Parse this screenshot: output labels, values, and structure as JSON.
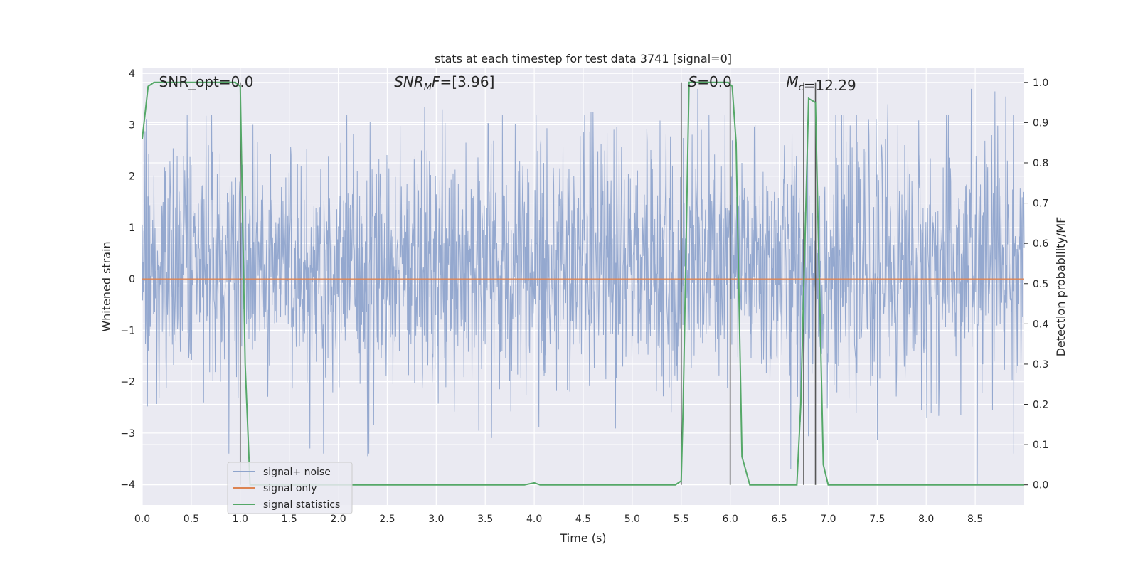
{
  "chart_data": {
    "type": "line",
    "title": "stats at each timestep for test data 3741 [signal=0]",
    "xlabel": "Time (s)",
    "ylabel_left": "Whitened strain",
    "ylabel_right": "Detection probability/MF",
    "xlim": [
      0,
      9
    ],
    "ylim_left": [
      -4.4,
      4.1
    ],
    "ylim_right": [
      -0.05,
      1.035
    ],
    "x_ticks": [
      "0.0",
      "0.5",
      "1.0",
      "1.5",
      "2.0",
      "2.5",
      "3.0",
      "3.5",
      "4.0",
      "4.5",
      "5.0",
      "5.5",
      "6.0",
      "6.5",
      "7.0",
      "7.5",
      "8.0",
      "8.5"
    ],
    "y_ticks_left": [
      "4",
      "3",
      "2",
      "1",
      "0",
      "−1",
      "−2",
      "−3",
      "−4"
    ],
    "y_ticks_right": [
      "1.0",
      "0.9",
      "0.8",
      "0.7",
      "0.6",
      "0.5",
      "0.4",
      "0.3",
      "0.2",
      "0.1",
      "0.0"
    ],
    "grid": true,
    "legend_position": "lower-left",
    "colors": {
      "noise": "#8fa4cc",
      "signal": "#dd8452",
      "stats": "#55a868",
      "vline": "#555555",
      "background": "#eaeaf2",
      "grid": "#ffffff"
    },
    "annotations": [
      {
        "id": "snr-opt",
        "text": "SNR_opt=0.0",
        "x": 0.2,
        "italic": false
      },
      {
        "id": "snr-mf",
        "text": "=[3.96]",
        "x": 2.6,
        "italic": true,
        "main": "SNR",
        "sub": "M",
        "tail": "F"
      },
      {
        "id": "s-val",
        "text": "=0.0",
        "x": 5.6,
        "italic": true,
        "main": "S",
        "sub": "",
        "tail": ""
      },
      {
        "id": "mc-val",
        "text": "=12.29",
        "x": 6.6,
        "italic": true,
        "main": "M",
        "sub": "c",
        "tail": ""
      }
    ],
    "vertical_lines_x": [
      1.0,
      5.5,
      6.0,
      6.75,
      6.87
    ],
    "series": [
      {
        "name": "signal+ noise",
        "axis": "left",
        "style": "noise",
        "envelope_typical": [
          -1.7,
          2.2
        ],
        "envelope_extreme": [
          -4.0,
          3.75
        ],
        "peaks": [
          {
            "x": 0.04,
            "y": 3.1
          },
          {
            "x": 1.13,
            "y": 3.0
          },
          {
            "x": 1.71,
            "y": -3.3
          },
          {
            "x": 2.3,
            "y": -3.45
          },
          {
            "x": 2.88,
            "y": 3.35
          },
          {
            "x": 3.06,
            "y": 3.3
          },
          {
            "x": 4.58,
            "y": 3.25
          },
          {
            "x": 4.6,
            "y": 3.25
          },
          {
            "x": 5.67,
            "y": 3.7
          },
          {
            "x": 6.62,
            "y": -3.7
          },
          {
            "x": 7.61,
            "y": 3.4
          },
          {
            "x": 8.46,
            "y": 3.7
          },
          {
            "x": 8.52,
            "y": -4.0
          },
          {
            "x": 8.7,
            "y": 3.65
          },
          {
            "x": 8.81,
            "y": 3.55
          }
        ]
      },
      {
        "name": "signal only",
        "axis": "left",
        "style": "signal",
        "x": [
          0,
          9
        ],
        "y": [
          0,
          0
        ]
      },
      {
        "name": "signal statistics",
        "axis": "right",
        "style": "stats",
        "x": [
          0,
          0.06,
          0.12,
          0.95,
          1.0,
          1.05,
          1.1,
          3.9,
          4.0,
          4.06,
          5.44,
          5.5,
          5.52,
          5.58,
          5.98,
          6.02,
          6.06,
          6.12,
          6.2,
          6.68,
          6.72,
          6.8,
          6.87,
          6.95,
          7.0,
          9.0
        ],
        "y": [
          0.86,
          0.99,
          1.0,
          1.0,
          0.99,
          0.3,
          0.0,
          0.0,
          0.005,
          0.0,
          0.0,
          0.01,
          0.2,
          1.0,
          1.0,
          0.99,
          0.85,
          0.07,
          0.0,
          0.0,
          0.2,
          0.96,
          0.95,
          0.05,
          0.0,
          0.0
        ]
      }
    ]
  }
}
